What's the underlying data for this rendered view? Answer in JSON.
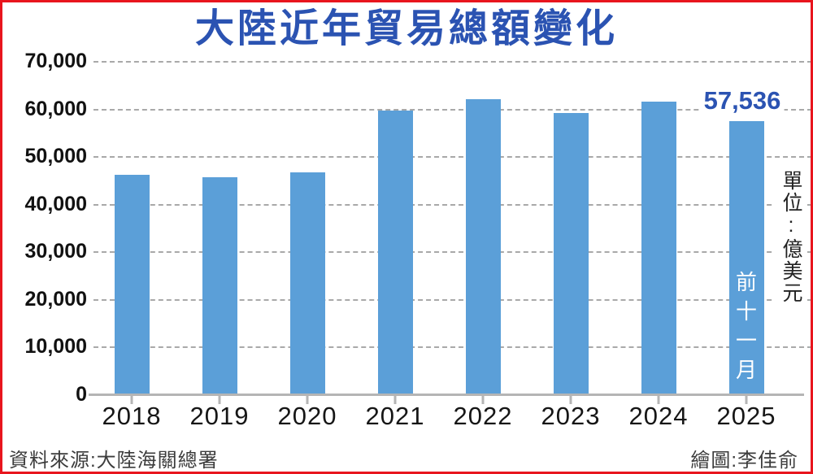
{
  "title": "大陸近年貿易總額變化",
  "unit_label": "單位:億美元",
  "footer": {
    "source": "資料來源:大陸海關總署",
    "credit": "繪圖:李佳俞"
  },
  "annotation": {
    "value_label": "57,536",
    "bar_note": "前十一月"
  },
  "colors": {
    "frame_border": "#e8151d",
    "title_blue": "#2b53b2",
    "bar_blue": "#5b9fd8",
    "gridline_gray": "#a9a9a9",
    "axis_gray": "#b5b5b5",
    "bar_note_text": "#ffffff"
  },
  "chart_data": {
    "type": "bar",
    "title": "大陸近年貿易總額變化",
    "xlabel": "",
    "ylabel": "億美元",
    "categories": [
      "2018",
      "2019",
      "2020",
      "2021",
      "2022",
      "2023",
      "2024",
      "2025"
    ],
    "values": [
      46300,
      45700,
      46700,
      59800,
      62200,
      59200,
      61600,
      57536
    ],
    "ylim": [
      0,
      70000
    ],
    "ytick_labels": [
      "70,000",
      "60,000",
      "50,000",
      "40,000",
      "30,000",
      "20,000",
      "10,000",
      "0"
    ],
    "grid": "horizontal-dashed",
    "legend": "none",
    "annotations": [
      {
        "category": "2025",
        "label": "57,536",
        "note": "前十一月",
        "note_position": "inside-bar-vertical"
      }
    ]
  }
}
